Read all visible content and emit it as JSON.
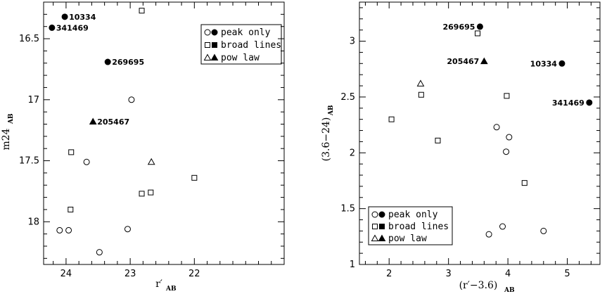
{
  "chart_data": [
    {
      "type": "scatter",
      "xlabel": "r′",
      "xlabel_sub": "AB",
      "ylabel": "m24",
      "ylabel_sub": "AB",
      "xlim": [
        24.35,
        20.6
      ],
      "ylim": [
        16.2,
        18.35
      ],
      "y_inverted": true,
      "xticks": [
        24,
        23,
        22
      ],
      "xtick_labels": [
        "24",
        "23",
        "22"
      ],
      "yticks": [
        16.5,
        17,
        17.5,
        18
      ],
      "ytick_labels": [
        "16.5",
        "17",
        "17.5",
        "18"
      ],
      "legend": {
        "placement": "top-right",
        "entries": [
          {
            "label": "peak only",
            "open": "circle",
            "filled": "circle"
          },
          {
            "label": "broad lines",
            "open": "square",
            "filled": "square"
          },
          {
            "label": "pow law",
            "open": "triangle",
            "filled": "triangle"
          }
        ]
      },
      "series": [
        {
          "marker": "circle",
          "filled": false,
          "points": [
            [
              24.1,
              18.07
            ],
            [
              23.96,
              18.07
            ],
            [
              23.68,
              17.51
            ],
            [
              23.48,
              18.25
            ],
            [
              23.04,
              18.06
            ],
            [
              22.98,
              17.0
            ]
          ]
        },
        {
          "marker": "square",
          "filled": false,
          "points": [
            [
              23.92,
              17.43
            ],
            [
              23.93,
              17.9
            ],
            [
              22.82,
              16.27
            ],
            [
              22.82,
              17.77
            ],
            [
              22.68,
              17.76
            ],
            [
              22.0,
              17.64
            ]
          ]
        },
        {
          "marker": "triangle",
          "filled": false,
          "points": [
            [
              22.67,
              17.51
            ]
          ]
        },
        {
          "marker": "circle",
          "filled": true,
          "points": [
            [
              24.22,
              16.41
            ],
            [
              24.02,
              16.32
            ],
            [
              23.35,
              16.69
            ]
          ]
        },
        {
          "marker": "triangle",
          "filled": true,
          "points": [
            [
              23.58,
              17.18
            ]
          ]
        }
      ],
      "annotations": [
        {
          "text": "10334",
          "x": 24.02,
          "y": 16.32
        },
        {
          "text": "341469",
          "x": 24.22,
          "y": 16.41
        },
        {
          "text": "269695",
          "x": 23.35,
          "y": 16.69
        },
        {
          "text": "205467",
          "x": 23.58,
          "y": 17.18
        }
      ]
    },
    {
      "type": "scatter",
      "xlabel": "(r′−3.6)",
      "xlabel_sub": "AB",
      "ylabel": "(3.6−24)",
      "ylabel_sub": "AB",
      "xlim": [
        1.5,
        5.55
      ],
      "ylim": [
        1.0,
        3.35
      ],
      "y_inverted": false,
      "xticks": [
        2,
        3,
        4,
        5
      ],
      "xtick_labels": [
        "2",
        "3",
        "4",
        "5"
      ],
      "yticks": [
        1,
        1.5,
        2,
        2.5,
        3
      ],
      "ytick_labels": [
        "1",
        "1.5",
        "2",
        "2.5",
        "3"
      ],
      "legend": {
        "placement": "bottom-left",
        "entries": [
          {
            "label": "peak only",
            "open": "circle",
            "filled": "circle"
          },
          {
            "label": "broad lines",
            "open": "square",
            "filled": "square"
          },
          {
            "label": "pow law",
            "open": "triangle",
            "filled": "triangle"
          }
        ]
      },
      "series": [
        {
          "marker": "circle",
          "filled": false,
          "points": [
            [
              3.81,
              2.23
            ],
            [
              4.02,
              2.14
            ],
            [
              3.97,
              2.01
            ],
            [
              3.68,
              1.27
            ],
            [
              3.91,
              1.34
            ],
            [
              4.6,
              1.3
            ]
          ]
        },
        {
          "marker": "square",
          "filled": false,
          "points": [
            [
              2.04,
              2.3
            ],
            [
              2.54,
              2.52
            ],
            [
              2.82,
              2.11
            ],
            [
              3.49,
              3.07
            ],
            [
              3.98,
              2.51
            ],
            [
              4.28,
              1.73
            ]
          ]
        },
        {
          "marker": "triangle",
          "filled": false,
          "points": [
            [
              2.53,
              2.62
            ]
          ]
        },
        {
          "marker": "circle",
          "filled": true,
          "points": [
            [
              3.53,
              3.13
            ],
            [
              4.91,
              2.8
            ],
            [
              5.37,
              2.45
            ]
          ]
        },
        {
          "marker": "triangle",
          "filled": true,
          "points": [
            [
              3.6,
              2.82
            ]
          ]
        }
      ],
      "annotations": [
        {
          "text": "269695",
          "x": 3.53,
          "y": 3.13
        },
        {
          "text": "205467",
          "x": 3.6,
          "y": 2.82
        },
        {
          "text": "10334",
          "x": 4.91,
          "y": 2.8
        },
        {
          "text": "341469",
          "x": 5.37,
          "y": 2.45
        }
      ]
    }
  ]
}
